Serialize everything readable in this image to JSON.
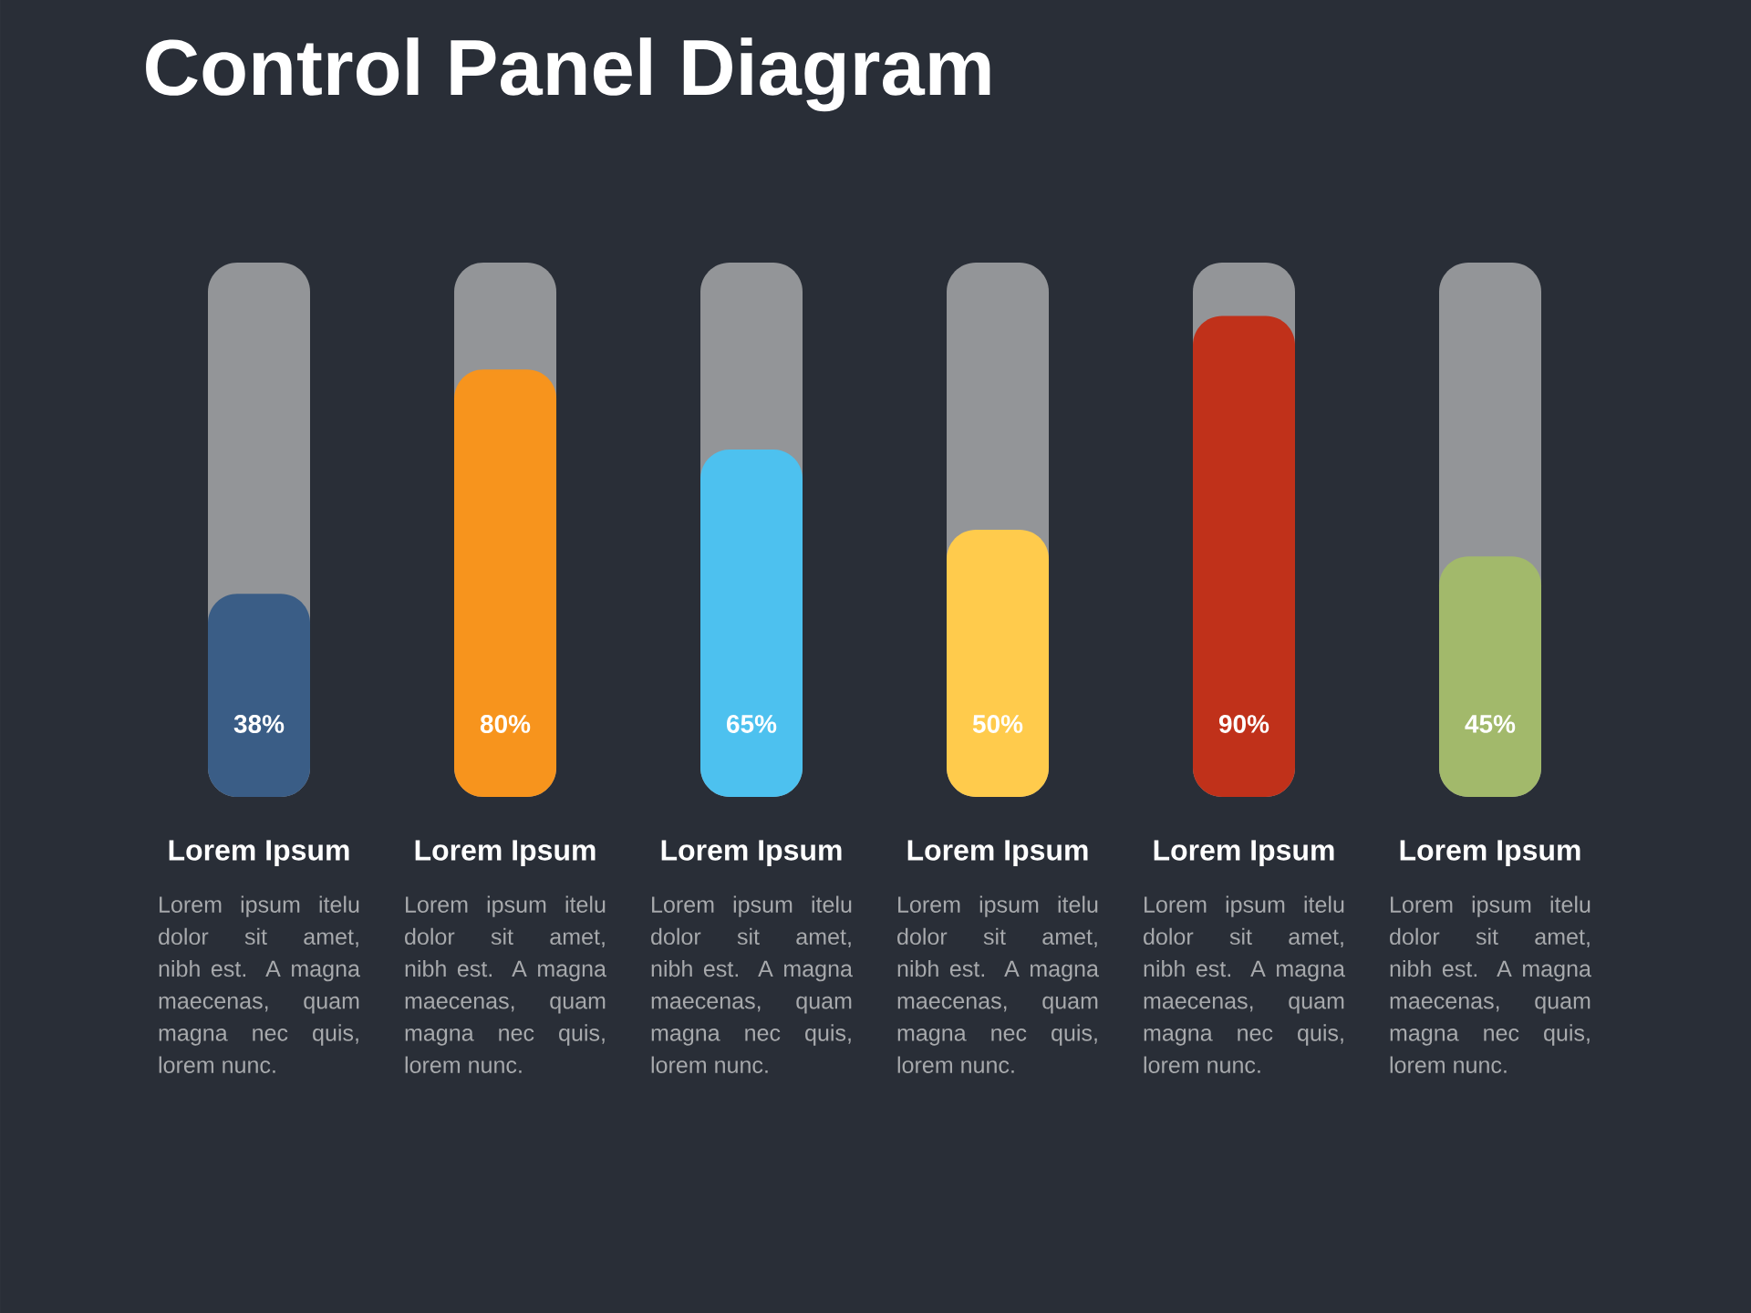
{
  "chart_data": {
    "type": "bar",
    "title": "Control Panel Diagram",
    "categories": [
      "Lorem Ipsum",
      "Lorem Ipsum",
      "Lorem Ipsum",
      "Lorem Ipsum",
      "Lorem Ipsum",
      "Lorem Ipsum"
    ],
    "values": [
      38,
      80,
      65,
      50,
      90,
      45
    ],
    "colors": [
      "#3a5d86",
      "#f7941d",
      "#4dc1ef",
      "#ffcb4c",
      "#c0311a",
      "#a2b96b"
    ],
    "value_labels": [
      "38%",
      "80%",
      "65%",
      "50%",
      "90%",
      "45%"
    ],
    "ylim": [
      0,
      100
    ],
    "tick_labels": "x",
    "annotations": [
      "Lorem ipsum itelu dolor sit amet, nibh est. A magna maecenas, quam magna nec quis, lorem nunc.",
      "Lorem ipsum itelu dolor sit amet, nibh est. A magna maecenas, quam magna nec quis, lorem nunc.",
      "Lorem ipsum itelu dolor sit amet, nibh est. A magna maecenas, quam magna nec quis, lorem nunc.",
      "Lorem ipsum itelu dolor sit amet, nibh est. A magna maecenas, quam magna nec quis, lorem nunc.",
      "Lorem ipsum itelu dolor sit amet, nibh est. A magna maecenas, quam magna nec quis, lorem nunc.",
      "Lorem ipsum itelu dolor sit amet, nibh est. A magna maecenas, quam magna nec quis, lorem nunc."
    ]
  }
}
